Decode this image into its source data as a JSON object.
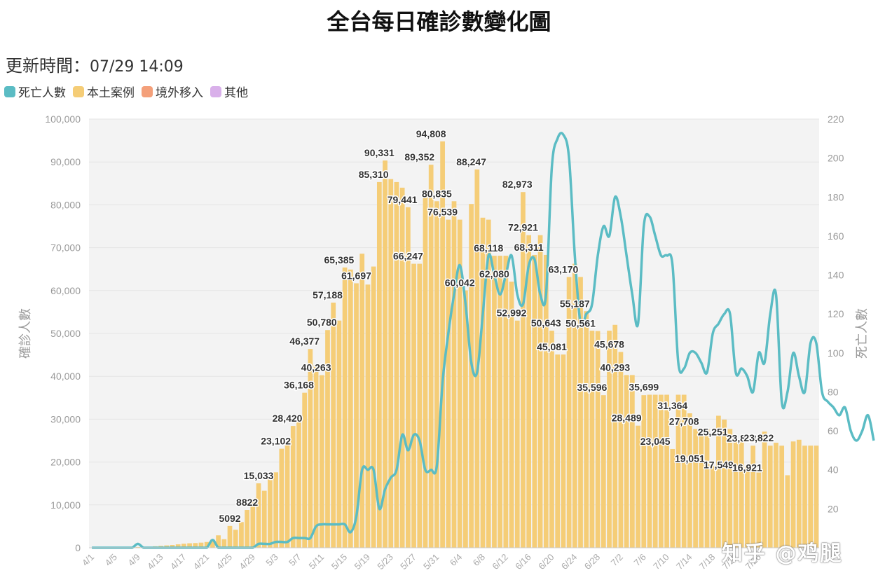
{
  "header": {
    "title": "全台每日確診數變化圖",
    "update_label": "更新時間：",
    "update_time": "07/29 14:09"
  },
  "legend": [
    {
      "label": "死亡人數",
      "color": "#5bbcc4"
    },
    {
      "label": "本土案例",
      "color": "#f5cd77"
    },
    {
      "label": "境外移入",
      "color": "#f4a07a"
    },
    {
      "label": "其他",
      "color": "#d9b0ea"
    }
  ],
  "watermark": "知乎 @鸡腿",
  "chart_data": {
    "type": "bar+line",
    "left_axis": {
      "title": "確診人數",
      "ylim": [
        0,
        100000
      ],
      "ticks": [
        "0",
        "10,000",
        "20,000",
        "30,000",
        "40,000",
        "50,000",
        "60,000",
        "70,000",
        "80,000",
        "90,000",
        "100,000"
      ]
    },
    "right_axis": {
      "title": "死亡人數",
      "ylim": [
        0,
        220
      ],
      "ticks": [
        "20",
        "40",
        "60",
        "80",
        "100",
        "120",
        "140",
        "160",
        "180",
        "200",
        "220"
      ]
    },
    "x_start": "4/1",
    "x_ticks": [
      "4/1",
      "4/5",
      "4/9",
      "4/13",
      "4/17",
      "4/21",
      "4/25",
      "4/29",
      "5/3",
      "5/7",
      "5/11",
      "5/15",
      "5/19",
      "5/23",
      "5/27",
      "5/31",
      "6/4",
      "6/8",
      "6/12",
      "6/16",
      "6/20",
      "6/24",
      "6/28",
      "7/2",
      "7/6",
      "7/10",
      "7/14",
      "7/18",
      "7/22",
      "7/26"
    ],
    "grid": true,
    "bar_color": "#f5cd77",
    "line_color": "#5bbcc4",
    "cases": [
      0,
      0,
      0,
      0,
      0,
      0,
      0,
      10,
      150,
      200,
      250,
      350,
      450,
      550,
      650,
      800,
      950,
      1050,
      1100,
      1200,
      1350,
      1900,
      2900,
      2000,
      5092,
      4200,
      6000,
      8822,
      11300,
      15033,
      13300,
      16600,
      17600,
      23102,
      24200,
      28420,
      29800,
      36168,
      46377,
      42600,
      40263,
      50780,
      57188,
      53000,
      65385,
      64900,
      61697,
      68600,
      61400,
      65600,
      85310,
      90331,
      86000,
      85310,
      84000,
      79441,
      66247,
      66247,
      82500,
      89352,
      80835,
      94808,
      76539,
      80835,
      76539,
      60042,
      80200,
      88247,
      77000,
      76539,
      68118,
      68118,
      68118,
      62080,
      52992,
      82973,
      72921,
      68311,
      72921,
      68311,
      50643,
      45081,
      45081,
      63170,
      66247,
      63170,
      55187,
      50643,
      50561,
      35596,
      50643,
      52000,
      45678,
      40293,
      40293,
      28489,
      35596,
      35699,
      35699,
      35699,
      35699,
      23045,
      35699,
      35699,
      31364,
      27708,
      27708,
      27708,
      19051,
      30800,
      29900,
      27708,
      25251,
      25251,
      19051,
      23813,
      17549,
      27100,
      23813,
      24500,
      23813,
      16921,
      24800,
      25200,
      23813,
      23822,
      23822
    ],
    "labeled_points": [
      {
        "x": "4/25",
        "value": "5092"
      },
      {
        "x": "4/28",
        "value": "8822"
      },
      {
        "x": "4/30",
        "value": "15,033"
      },
      {
        "x": "5/3",
        "value": "23,102"
      },
      {
        "x": "5/5",
        "value": "28,420"
      },
      {
        "x": "5/7",
        "value": "36,168"
      },
      {
        "x": "5/8",
        "value": "46,377"
      },
      {
        "x": "5/10",
        "value": "40,263"
      },
      {
        "x": "5/11",
        "value": "50,780"
      },
      {
        "x": "5/12",
        "value": "57,188"
      },
      {
        "x": "5/14",
        "value": "65,385"
      },
      {
        "x": "5/17",
        "value": "61,697"
      },
      {
        "x": "5/20",
        "value": "85,310"
      },
      {
        "x": "5/21",
        "value": "90,331"
      },
      {
        "x": "5/25",
        "value": "79,441"
      },
      {
        "x": "5/26",
        "value": "66,247"
      },
      {
        "x": "5/28",
        "value": "89,352"
      },
      {
        "x": "5/30",
        "value": "94,808"
      },
      {
        "x": "5/31",
        "value": "80,835"
      },
      {
        "x": "6/1",
        "value": "76,539"
      },
      {
        "x": "6/4",
        "value": "60,042"
      },
      {
        "x": "6/6",
        "value": "88,247"
      },
      {
        "x": "6/9",
        "value": "68,118"
      },
      {
        "x": "6/10",
        "value": "62,080"
      },
      {
        "x": "6/13",
        "value": "52,992"
      },
      {
        "x": "6/14",
        "value": "82,973"
      },
      {
        "x": "6/15",
        "value": "72,921"
      },
      {
        "x": "6/16",
        "value": "68,311"
      },
      {
        "x": "6/19",
        "value": "50,643"
      },
      {
        "x": "6/20",
        "value": "45,081"
      },
      {
        "x": "6/22",
        "value": "63,170"
      },
      {
        "x": "6/24",
        "value": "55,187"
      },
      {
        "x": "6/25",
        "value": "50,561"
      },
      {
        "x": "6/27",
        "value": "35,596"
      },
      {
        "x": "6/30",
        "value": "45,678"
      },
      {
        "x": "7/1",
        "value": "40,293"
      },
      {
        "x": "7/3",
        "value": "28,489"
      },
      {
        "x": "7/6",
        "value": "35,699"
      },
      {
        "x": "7/8",
        "value": "23,045"
      },
      {
        "x": "7/11",
        "value": "31,364"
      },
      {
        "x": "7/13",
        "value": "27,708"
      },
      {
        "x": "7/14",
        "value": "19,051"
      },
      {
        "x": "7/18",
        "value": "25,251"
      },
      {
        "x": "7/19",
        "value": "17,549"
      },
      {
        "x": "7/23",
        "value": "23,813"
      },
      {
        "x": "7/24",
        "value": "16,921"
      },
      {
        "x": "7/26",
        "value": "23,822"
      }
    ],
    "deaths": [
      0,
      0,
      0,
      0,
      0,
      0,
      0,
      0,
      2,
      0,
      0,
      0,
      0,
      0,
      0,
      0,
      0,
      0,
      0,
      0,
      0,
      4,
      0,
      0,
      0,
      0,
      0,
      0,
      0,
      2,
      2,
      2,
      3,
      3,
      3,
      5,
      5,
      5,
      5,
      11,
      12,
      12,
      12,
      12,
      12,
      8,
      16,
      40,
      40,
      40,
      20,
      30,
      36,
      40,
      58,
      50,
      58,
      55,
      40,
      40,
      42,
      85,
      110,
      130,
      145,
      125,
      95,
      90,
      120,
      150,
      140,
      130,
      140,
      150,
      130,
      125,
      145,
      148,
      130,
      130,
      195,
      210,
      212,
      200,
      150,
      115,
      120,
      125,
      150,
      165,
      160,
      180,
      170,
      150,
      130,
      115,
      165,
      170,
      160,
      150,
      150,
      145,
      95,
      92,
      100,
      100,
      95,
      90,
      110,
      115,
      120,
      120,
      90,
      92,
      88,
      80,
      100,
      95,
      120,
      130,
      75,
      80,
      100,
      88,
      80,
      105,
      105,
      80,
      75,
      72,
      68,
      72,
      60,
      55,
      60,
      68,
      55
    ],
    "deaths_note": "line series read from right axis"
  }
}
